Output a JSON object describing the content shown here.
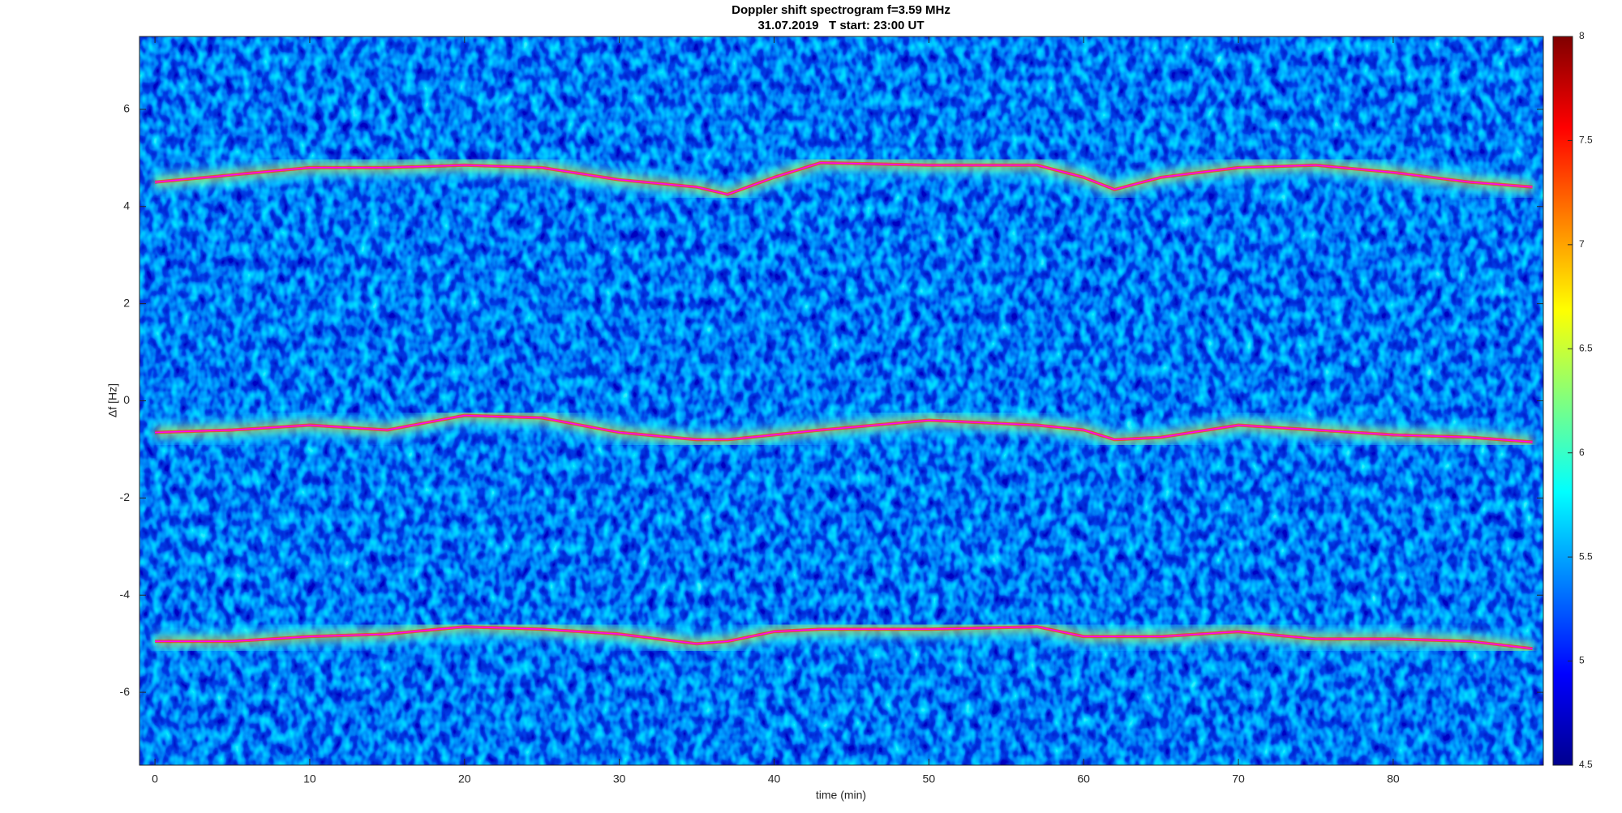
{
  "chart_data": {
    "type": "spectrogram",
    "title": "Doppler shift spectrogram f=3.59 MHz",
    "subtitle": "31.07.2019   T start: 23:00 UT",
    "x_label": "time (min)",
    "y_label": "Δf [Hz]",
    "x": [
      0,
      5,
      10,
      15,
      20,
      25,
      30,
      35,
      37,
      40,
      43,
      50,
      57,
      60,
      62,
      65,
      70,
      75,
      80,
      85,
      89
    ],
    "series": [
      {
        "color": "#ff00ff",
        "values": [
          4.5,
          4.65,
          4.8,
          4.8,
          4.85,
          4.8,
          4.55,
          4.4,
          4.25,
          4.6,
          4.9,
          4.85,
          4.85,
          4.6,
          4.35,
          4.6,
          4.8,
          4.85,
          4.7,
          4.5,
          4.4
        ]
      },
      {
        "color": "#ff00ff",
        "values": [
          -0.65,
          -0.6,
          -0.5,
          -0.6,
          -0.3,
          -0.35,
          -0.65,
          -0.8,
          -0.8,
          -0.7,
          -0.6,
          -0.4,
          -0.5,
          -0.6,
          -0.8,
          -0.75,
          -0.5,
          -0.6,
          -0.7,
          -0.75,
          -0.85
        ]
      },
      {
        "color": "#ff00ff",
        "values": [
          -4.95,
          -4.95,
          -4.85,
          -4.8,
          -4.65,
          -4.7,
          -4.8,
          -5.0,
          -4.95,
          -4.75,
          -4.7,
          -4.7,
          -4.65,
          -4.85,
          -4.85,
          -4.85,
          -4.75,
          -4.9,
          -4.9,
          -4.95,
          -5.1
        ]
      }
    ],
    "xlim": [
      -1,
      89.7
    ],
    "xticks": [
      0,
      10,
      20,
      30,
      40,
      50,
      60,
      70,
      80
    ],
    "ylim": [
      -7.5,
      7.5
    ],
    "yticks": [
      -6,
      -4,
      -2,
      0,
      2,
      4,
      6
    ],
    "colorbar": {
      "colormap": "jet",
      "lim": [
        4.5,
        8
      ],
      "ticks": [
        4.5,
        5,
        5.5,
        6,
        6.5,
        7,
        7.5,
        8
      ]
    }
  }
}
